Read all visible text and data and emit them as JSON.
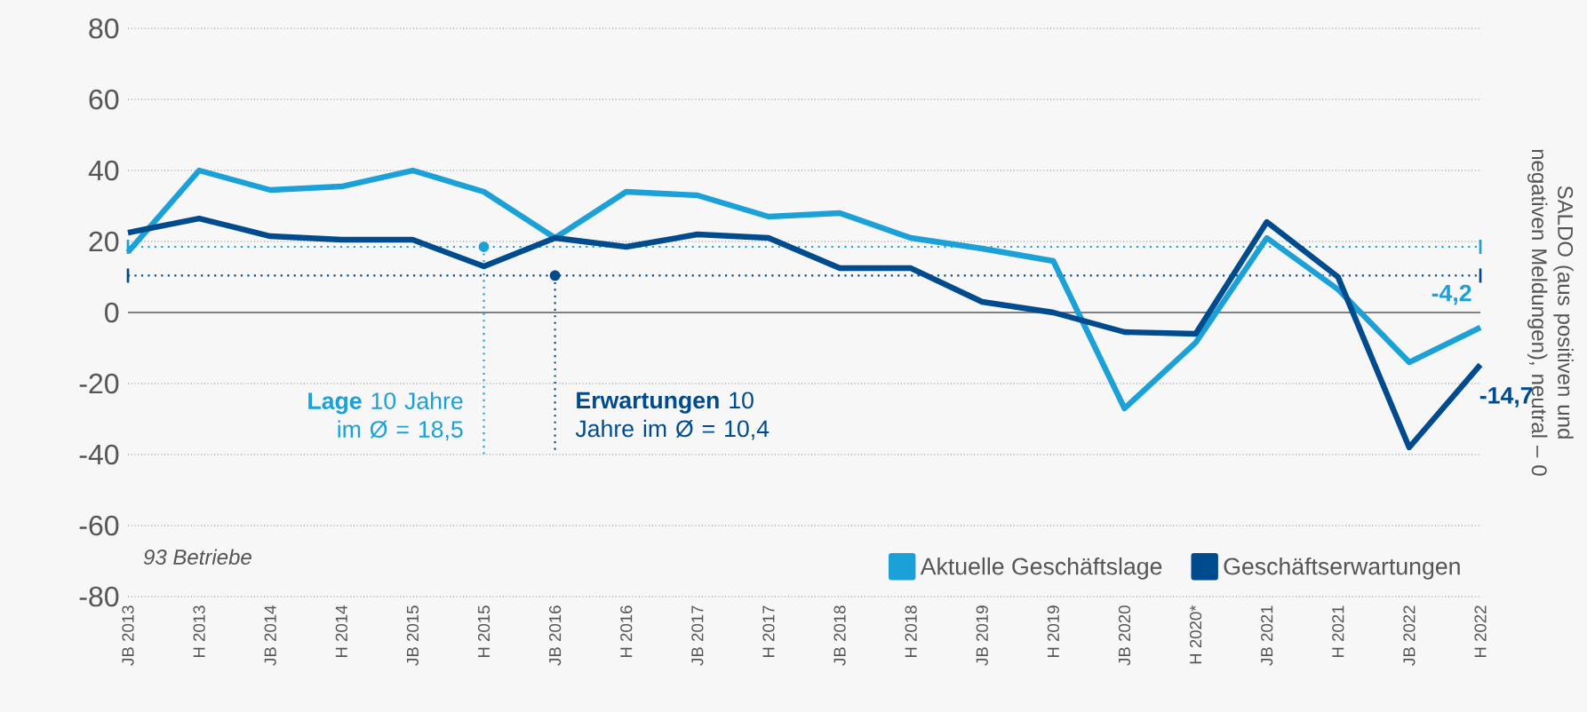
{
  "chart_data": {
    "type": "line",
    "ylabel": "SALDO (aus positiven und negativen Meldungen), neutral – 0",
    "categories": [
      "JB 2013",
      "H 2013",
      "JB 2014",
      "H 2014",
      "JB 2015",
      "H 2015",
      "JB 2016",
      "H 2016",
      "JB 2017",
      "H 2017",
      "JB 2018",
      "H 2018",
      "JB 2019",
      "H 2019",
      "JB 2020",
      "H 2020*",
      "JB 2021",
      "H 2021",
      "JB 2022",
      "H 2022"
    ],
    "series": [
      {
        "name": "Aktuelle Geschäftslage",
        "color": "#1ba1d8",
        "values": [
          17,
          40,
          34.5,
          35.5,
          40,
          34,
          21,
          34,
          33,
          27,
          28,
          21,
          18,
          14.5,
          -27,
          -8.5,
          21,
          6.5,
          -14,
          -4.2
        ],
        "value_labels": [
          null,
          null,
          null,
          null,
          null,
          null,
          null,
          null,
          null,
          null,
          null,
          null,
          null,
          null,
          null,
          null,
          null,
          null,
          null,
          "-4,2"
        ]
      },
      {
        "name": "Geschäftserwartungen",
        "color": "#004b8d",
        "values": [
          22.5,
          26.5,
          21.5,
          20.5,
          20.5,
          13,
          21,
          18.5,
          22,
          21,
          12.5,
          12.5,
          3,
          0,
          -5.5,
          -6,
          25.5,
          10,
          -38,
          -14.7
        ],
        "value_labels": [
          null,
          null,
          null,
          null,
          null,
          null,
          null,
          null,
          null,
          null,
          null,
          null,
          null,
          null,
          null,
          null,
          null,
          null,
          null,
          "-14,7"
        ]
      }
    ],
    "ylim": [
      -80,
      80
    ],
    "yticks": [
      -80,
      -60,
      -40,
      -20,
      0,
      20,
      40,
      60,
      80
    ],
    "grid": "y",
    "legend": "bottom right",
    "marker": "none",
    "line_style": "solid",
    "ref_lines": [
      {
        "axis": "y",
        "value": 18.5,
        "label": "**Lage** 10 Jahre im Ø = 18,5",
        "color": "#1ba1d8",
        "line_style": "dotted"
      },
      {
        "axis": "y",
        "value": 10.4,
        "label": "**Erwartungen** 10 Jahre im Ø = 10,4",
        "color": "#004b8d",
        "line_style": "dotted"
      }
    ],
    "annotations": [
      "93 Betriebe"
    ]
  }
}
